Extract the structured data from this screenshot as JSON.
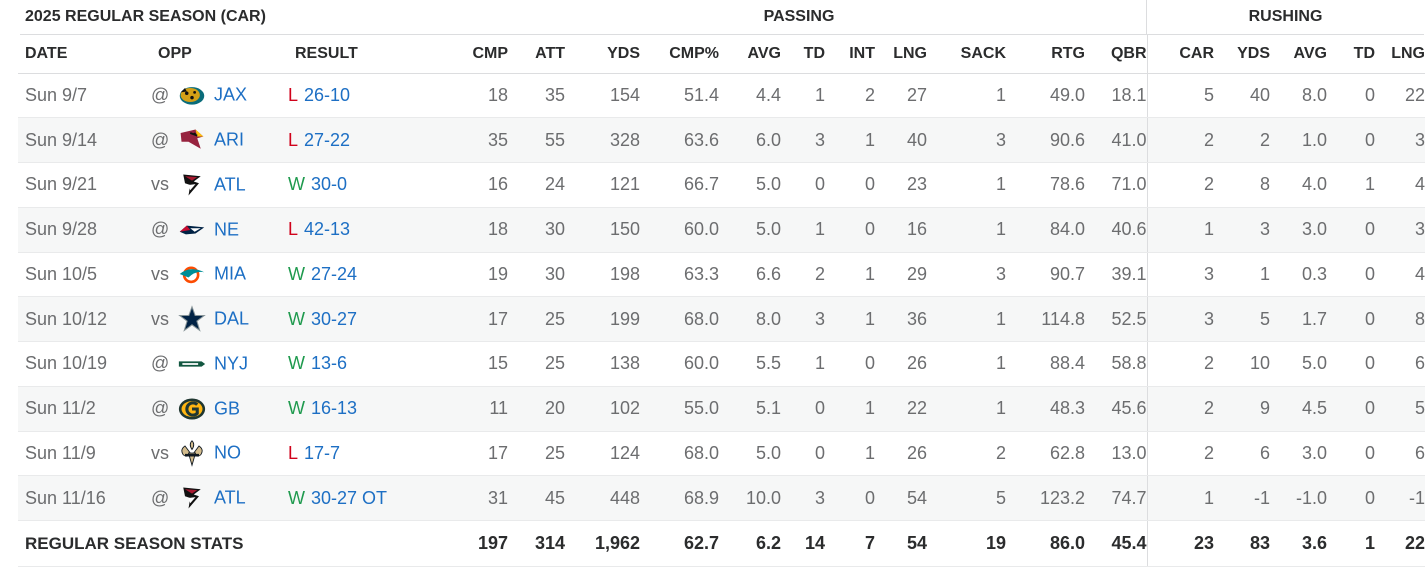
{
  "groups": {
    "title": "2025 REGULAR SEASON (CAR)",
    "passing": "PASSING",
    "rushing": "RUSHING"
  },
  "columns": {
    "date": "DATE",
    "opp": "OPP",
    "result": "RESULT",
    "cmp": "CMP",
    "att": "ATT",
    "pyds": "YDS",
    "cmp_pct": "CMP%",
    "pavg": "AVG",
    "ptd": "TD",
    "int": "INT",
    "plng": "LNG",
    "sack": "SACK",
    "rtg": "RTG",
    "qbr": "QBR",
    "car": "CAR",
    "ryds": "YDS",
    "ravg": "AVG",
    "rtd": "TD",
    "rlng": "LNG"
  },
  "games": [
    {
      "date": "Sun 9/7",
      "loc": "@",
      "opp": "JAX",
      "logo": "jaguars-logo-icon",
      "wl": "L",
      "score": "26-10",
      "cmp": "18",
      "att": "35",
      "pyds": "154",
      "cmp_pct": "51.4",
      "pavg": "4.4",
      "ptd": "1",
      "int": "2",
      "plng": "27",
      "sack": "1",
      "rtg": "49.0",
      "qbr": "18.1",
      "car": "5",
      "ryds": "40",
      "ravg": "8.0",
      "rtd": "0",
      "rlng": "22"
    },
    {
      "date": "Sun 9/14",
      "loc": "@",
      "opp": "ARI",
      "logo": "cardinals-logo-icon",
      "wl": "L",
      "score": "27-22",
      "cmp": "35",
      "att": "55",
      "pyds": "328",
      "cmp_pct": "63.6",
      "pavg": "6.0",
      "ptd": "3",
      "int": "1",
      "plng": "40",
      "sack": "3",
      "rtg": "90.6",
      "qbr": "41.0",
      "car": "2",
      "ryds": "2",
      "ravg": "1.0",
      "rtd": "0",
      "rlng": "3"
    },
    {
      "date": "Sun 9/21",
      "loc": "vs",
      "opp": "ATL",
      "logo": "falcons-logo-icon",
      "wl": "W",
      "score": "30-0",
      "cmp": "16",
      "att": "24",
      "pyds": "121",
      "cmp_pct": "66.7",
      "pavg": "5.0",
      "ptd": "0",
      "int": "0",
      "plng": "23",
      "sack": "1",
      "rtg": "78.6",
      "qbr": "71.0",
      "car": "2",
      "ryds": "8",
      "ravg": "4.0",
      "rtd": "1",
      "rlng": "4"
    },
    {
      "date": "Sun 9/28",
      "loc": "@",
      "opp": "NE",
      "logo": "patriots-logo-icon",
      "wl": "L",
      "score": "42-13",
      "cmp": "18",
      "att": "30",
      "pyds": "150",
      "cmp_pct": "60.0",
      "pavg": "5.0",
      "ptd": "1",
      "int": "0",
      "plng": "16",
      "sack": "1",
      "rtg": "84.0",
      "qbr": "40.6",
      "car": "1",
      "ryds": "3",
      "ravg": "3.0",
      "rtd": "0",
      "rlng": "3"
    },
    {
      "date": "Sun 10/5",
      "loc": "vs",
      "opp": "MIA",
      "logo": "dolphins-logo-icon",
      "wl": "W",
      "score": "27-24",
      "cmp": "19",
      "att": "30",
      "pyds": "198",
      "cmp_pct": "63.3",
      "pavg": "6.6",
      "ptd": "2",
      "int": "1",
      "plng": "29",
      "sack": "3",
      "rtg": "90.7",
      "qbr": "39.1",
      "car": "3",
      "ryds": "1",
      "ravg": "0.3",
      "rtd": "0",
      "rlng": "4"
    },
    {
      "date": "Sun 10/12",
      "loc": "vs",
      "opp": "DAL",
      "logo": "cowboys-logo-icon",
      "wl": "W",
      "score": "30-27",
      "cmp": "17",
      "att": "25",
      "pyds": "199",
      "cmp_pct": "68.0",
      "pavg": "8.0",
      "ptd": "3",
      "int": "1",
      "plng": "36",
      "sack": "1",
      "rtg": "114.8",
      "qbr": "52.5",
      "car": "3",
      "ryds": "5",
      "ravg": "1.7",
      "rtd": "0",
      "rlng": "8"
    },
    {
      "date": "Sun 10/19",
      "loc": "@",
      "opp": "NYJ",
      "logo": "jets-logo-icon",
      "wl": "W",
      "score": "13-6",
      "cmp": "15",
      "att": "25",
      "pyds": "138",
      "cmp_pct": "60.0",
      "pavg": "5.5",
      "ptd": "1",
      "int": "0",
      "plng": "26",
      "sack": "1",
      "rtg": "88.4",
      "qbr": "58.8",
      "car": "2",
      "ryds": "10",
      "ravg": "5.0",
      "rtd": "0",
      "rlng": "6"
    },
    {
      "date": "Sun 11/2",
      "loc": "@",
      "opp": "GB",
      "logo": "packers-logo-icon",
      "wl": "W",
      "score": "16-13",
      "cmp": "11",
      "att": "20",
      "pyds": "102",
      "cmp_pct": "55.0",
      "pavg": "5.1",
      "ptd": "0",
      "int": "1",
      "plng": "22",
      "sack": "1",
      "rtg": "48.3",
      "qbr": "45.6",
      "car": "2",
      "ryds": "9",
      "ravg": "4.5",
      "rtd": "0",
      "rlng": "5"
    },
    {
      "date": "Sun 11/9",
      "loc": "vs",
      "opp": "NO",
      "logo": "saints-logo-icon",
      "wl": "L",
      "score": "17-7",
      "cmp": "17",
      "att": "25",
      "pyds": "124",
      "cmp_pct": "68.0",
      "pavg": "5.0",
      "ptd": "0",
      "int": "1",
      "plng": "26",
      "sack": "2",
      "rtg": "62.8",
      "qbr": "13.0",
      "car": "2",
      "ryds": "6",
      "ravg": "3.0",
      "rtd": "0",
      "rlng": "6"
    },
    {
      "date": "Sun 11/16",
      "loc": "@",
      "opp": "ATL",
      "logo": "falcons-logo-icon",
      "wl": "W",
      "score": "30-27 OT",
      "cmp": "31",
      "att": "45",
      "pyds": "448",
      "cmp_pct": "68.9",
      "pavg": "10.0",
      "ptd": "3",
      "int": "0",
      "plng": "54",
      "sack": "5",
      "rtg": "123.2",
      "qbr": "74.7",
      "car": "1",
      "ryds": "-1",
      "ravg": "-1.0",
      "rtd": "0",
      "rlng": "-1"
    }
  ],
  "totals": {
    "label": "REGULAR SEASON STATS",
    "cmp": "197",
    "att": "314",
    "pyds": "1,962",
    "cmp_pct": "62.7",
    "pavg": "6.2",
    "ptd": "14",
    "int": "7",
    "plng": "54",
    "sack": "19",
    "rtg": "86.0",
    "qbr": "45.4",
    "car": "23",
    "ryds": "83",
    "ravg": "3.6",
    "rtd": "1",
    "rlng": "22"
  },
  "colors": {
    "win": "#1f9a4e",
    "loss": "#d0021b",
    "link": "#1d6fc4"
  }
}
